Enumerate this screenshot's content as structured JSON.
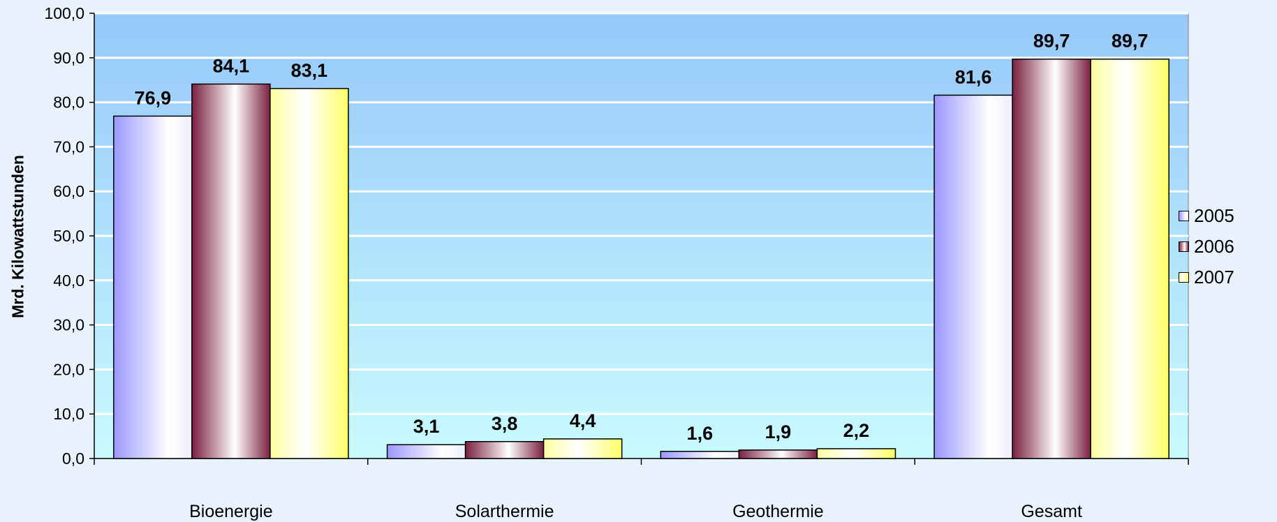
{
  "chart_data": {
    "type": "bar",
    "categories": [
      "Bioenergie",
      "Solarthermie",
      "Geothermie",
      "Gesamt"
    ],
    "series": [
      {
        "name": "2005",
        "values": [
          76.9,
          3.1,
          1.6,
          81.6
        ],
        "labels": [
          "76,9",
          "3,1",
          "1,6",
          "81,6"
        ]
      },
      {
        "name": "2006",
        "values": [
          84.1,
          3.8,
          1.9,
          89.7
        ],
        "labels": [
          "84,1",
          "3,8",
          "1,9",
          "89,7"
        ]
      },
      {
        "name": "2007",
        "values": [
          83.1,
          4.4,
          2.2,
          89.7
        ],
        "labels": [
          "83,1",
          "4,4",
          "2,2",
          "89,7"
        ]
      }
    ],
    "title": "",
    "xlabel": "",
    "ylabel": "Mrd. Kilowattstunden",
    "ylim": [
      0,
      100
    ],
    "yticks": [
      0,
      10,
      20,
      30,
      40,
      50,
      60,
      70,
      80,
      90,
      100
    ],
    "ytick_labels": [
      "0,0",
      "10,0",
      "20,0",
      "30,0",
      "40,0",
      "50,0",
      "60,0",
      "70,0",
      "80,0",
      "90,0",
      "100,0"
    ],
    "grid": true,
    "legend_position": "right",
    "colors": {
      "plot_top": "#96c8fa",
      "plot_bottom": "#c8faff",
      "page_background": "#e8f2fc",
      "gridline": "#ffffff",
      "series_2005": "#9a98ff",
      "series_2006": "#7a2040",
      "series_2007": "#ffff66"
    }
  }
}
